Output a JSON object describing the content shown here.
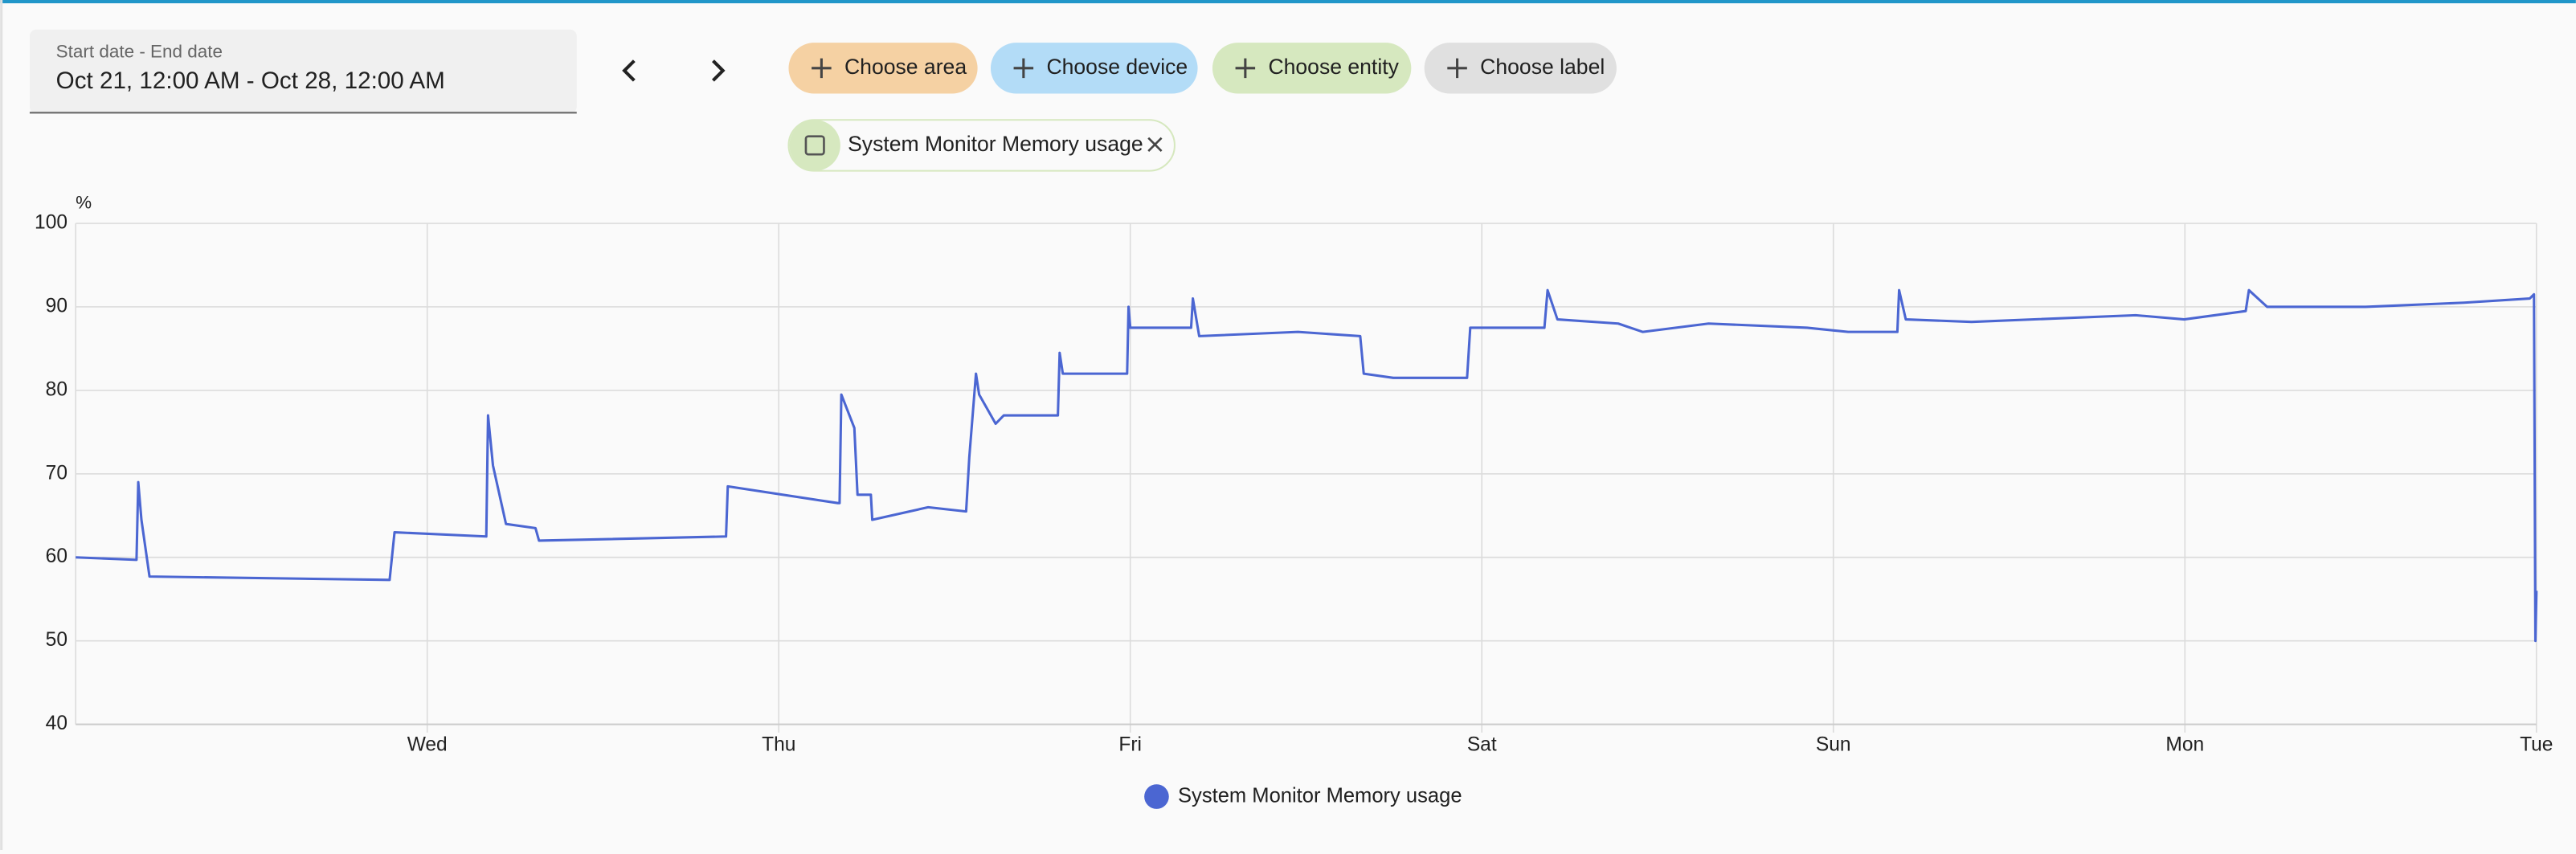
{
  "date_picker": {
    "label": "Start date - End date",
    "value": "Oct 21, 12:00 AM - Oct 28, 12:00 AM"
  },
  "filters": [
    "Choose area",
    "Choose device",
    "Choose entity",
    "Choose label"
  ],
  "selected_entity": "System Monitor Memory usage",
  "chart_data": {
    "type": "line",
    "y_unit": "%",
    "grid": true,
    "legend": "bottom",
    "xlim": [
      0,
      7
    ],
    "ylim": [
      40,
      100
    ],
    "yticks": [
      40,
      50,
      60,
      70,
      80,
      90,
      100
    ],
    "xticks": [
      {
        "value": 1,
        "label": "Wed"
      },
      {
        "value": 2,
        "label": "Thu"
      },
      {
        "value": 3,
        "label": "Fri"
      },
      {
        "value": 4,
        "label": "Sat"
      },
      {
        "value": 5,
        "label": "Sun"
      },
      {
        "value": 6,
        "label": "Mon"
      },
      {
        "value": 7,
        "label": "Tue"
      }
    ],
    "x": [
      0,
      0.173,
      0.178,
      0.187,
      0.21,
      0.893,
      0.907,
      1.168,
      1.173,
      1.187,
      1.224,
      1.308,
      1.318,
      1.85,
      1.855,
      2.168,
      2.173,
      2.178,
      2.215,
      2.224,
      2.262,
      2.266,
      2.425,
      2.533,
      2.542,
      2.561,
      2.57,
      2.617,
      2.64,
      2.785,
      2.794,
      2.799,
      2.808,
      2.991,
      2.995,
      3.0,
      3.173,
      3.178,
      3.196,
      3.477,
      3.654,
      3.664,
      3.748,
      3.958,
      3.967,
      4.178,
      4.187,
      4.215,
      4.388,
      4.458,
      4.645,
      4.925,
      5.042,
      5.182,
      5.187,
      5.206,
      5.393,
      5.86,
      5.998,
      6.173,
      6.182,
      6.234,
      6.514,
      6.794,
      6.981,
      6.993,
      6.997,
      7.0
    ],
    "series": [
      {
        "name": "System Monitor Memory usage",
        "color": "#4b66d2",
        "values": [
          60,
          59.7,
          69,
          64.5,
          57.7,
          57.3,
          63,
          62.5,
          77,
          71,
          64,
          63.5,
          62,
          62.5,
          68.5,
          66.5,
          66.5,
          79.5,
          75.5,
          67.5,
          67.5,
          64.5,
          66,
          65.5,
          72,
          82,
          79.5,
          76,
          77,
          77,
          77,
          84.5,
          82,
          82,
          90,
          87.5,
          87.5,
          91,
          86.5,
          87,
          86.5,
          82,
          81.5,
          81.5,
          87.5,
          87.5,
          92,
          88.5,
          88,
          87,
          88,
          87.5,
          87,
          87,
          92,
          88.5,
          88.2,
          89,
          88.5,
          89.5,
          92,
          90,
          90,
          90.5,
          91,
          91.5,
          50,
          56
        ]
      }
    ]
  }
}
